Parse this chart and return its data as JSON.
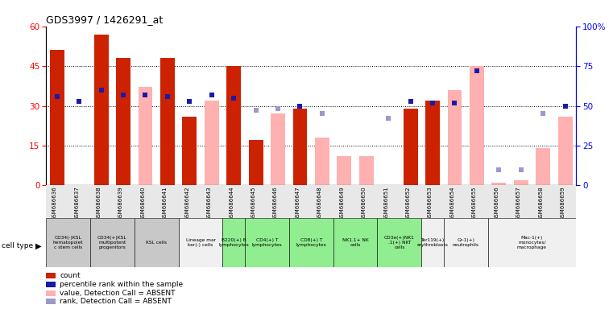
{
  "title": "GDS3997 / 1426291_at",
  "samples": [
    "GSM686636",
    "GSM686637",
    "GSM686638",
    "GSM686639",
    "GSM686640",
    "GSM686641",
    "GSM686642",
    "GSM686643",
    "GSM686644",
    "GSM686645",
    "GSM686646",
    "GSM686647",
    "GSM686648",
    "GSM686649",
    "GSM686650",
    "GSM686651",
    "GSM686652",
    "GSM686653",
    "GSM686654",
    "GSM686655",
    "GSM686656",
    "GSM686657",
    "GSM686658",
    "GSM686659"
  ],
  "bar_values": [
    51,
    0,
    57,
    48,
    0,
    48,
    26,
    0,
    45,
    17,
    0,
    29,
    0,
    0,
    0,
    0,
    29,
    32,
    0,
    0,
    0,
    0,
    0,
    0
  ],
  "bar_absent": [
    0,
    0,
    0,
    0,
    37,
    0,
    0,
    32,
    0,
    0,
    27,
    0,
    18,
    11,
    11,
    0,
    0,
    0,
    36,
    45,
    1,
    2,
    14,
    26
  ],
  "rank_values": [
    56,
    53,
    60,
    57,
    57,
    56,
    53,
    57,
    55,
    0,
    0,
    50,
    0,
    0,
    0,
    0,
    53,
    52,
    52,
    72,
    0,
    0,
    0,
    50
  ],
  "rank_absent": [
    0,
    0,
    0,
    0,
    0,
    0,
    0,
    0,
    0,
    47,
    48,
    0,
    45,
    0,
    0,
    42,
    0,
    0,
    0,
    0,
    10,
    10,
    45,
    0
  ],
  "cell_types": [
    {
      "label": "CD34(-)KSL\nhematopoiet\nc stem cells",
      "color": "#c8c8c8",
      "span": [
        0,
        2
      ]
    },
    {
      "label": "CD34(+)KSL\nmultipotent\nprogenitors",
      "color": "#c8c8c8",
      "span": [
        2,
        4
      ]
    },
    {
      "label": "KSL cells",
      "color": "#c8c8c8",
      "span": [
        4,
        6
      ]
    },
    {
      "label": "Lineage mar\nker(-) cells",
      "color": "#f0f0f0",
      "span": [
        6,
        8
      ]
    },
    {
      "label": "B220(+) B\nlymphocytes",
      "color": "#90ee90",
      "span": [
        8,
        9
      ]
    },
    {
      "label": "CD4(+) T\nlymphocytes",
      "color": "#90ee90",
      "span": [
        9,
        11
      ]
    },
    {
      "label": "CD8(+) T\nlymphocytes",
      "color": "#90ee90",
      "span": [
        11,
        13
      ]
    },
    {
      "label": "NK1.1+ NK\ncells",
      "color": "#90ee90",
      "span": [
        13,
        15
      ]
    },
    {
      "label": "CD3e(+)NK1\n.1(+) NKT\ncells",
      "color": "#90ee90",
      "span": [
        15,
        17
      ]
    },
    {
      "label": "Ter119(+)\nerythroblasts",
      "color": "#f0f0f0",
      "span": [
        17,
        18
      ]
    },
    {
      "label": "Gr-1(+)\nneutrophils",
      "color": "#f0f0f0",
      "span": [
        18,
        20
      ]
    },
    {
      "label": "Mac-1(+)\nmonocytes/\nmacrophage",
      "color": "#f0f0f0",
      "span": [
        20,
        24
      ]
    }
  ],
  "ylim_left": [
    0,
    60
  ],
  "ylim_right": [
    0,
    100
  ],
  "yticks_left": [
    0,
    15,
    30,
    45,
    60
  ],
  "yticks_right": [
    0,
    25,
    50,
    75,
    100
  ],
  "bar_color": "#cc2200",
  "bar_absent_color": "#ffb0b0",
  "rank_color": "#1a1aaa",
  "rank_absent_color": "#9999cc",
  "grid_color": "black"
}
